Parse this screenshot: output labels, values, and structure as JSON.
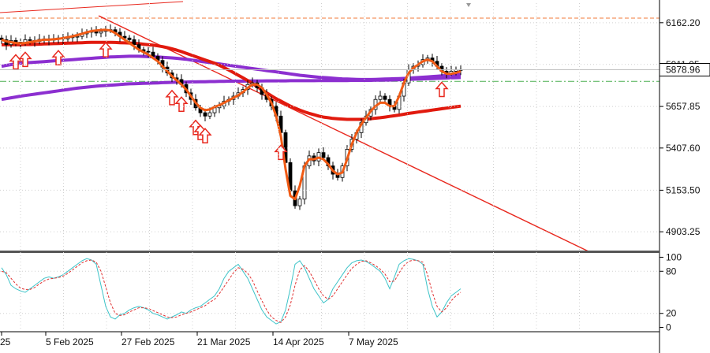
{
  "chart_data": [
    {
      "type": "candlestick",
      "title": "",
      "price_axis": {
        "labels": [
          "6162.20",
          "5911.05",
          "5657.85",
          "5407.60",
          "5153.50",
          "4903.25"
        ],
        "values": [
          6162.2,
          5911.05,
          5657.85,
          5407.6,
          5153.5,
          4903.25
        ],
        "range": [
          4790,
          6280
        ]
      },
      "current_price": {
        "label": "5878.96",
        "value": 5878.96
      },
      "levels": [
        {
          "name": "dashed-orange-level",
          "value": 6190,
          "color": "#f07a3a"
        },
        {
          "name": "dashdot-green-level",
          "value": 5809,
          "color": "#4caf50"
        }
      ],
      "x_axis": {
        "labels": [
          "25",
          "5 Feb 2025",
          "27 Feb 2025",
          "21 Mar 2025",
          "14 Apr 2025",
          "7 May 2025"
        ],
        "label_bars": [
          0,
          15,
          31,
          47,
          63,
          79
        ]
      },
      "bar_count": 98,
      "close": [
        6060,
        6030,
        6055,
        6045,
        6040,
        6060,
        6055,
        6050,
        6062,
        6065,
        6058,
        6062,
        6070,
        6065,
        6072,
        6078,
        6080,
        6095,
        6105,
        6110,
        6100,
        6110,
        6118,
        6120,
        6105,
        6080,
        6070,
        6060,
        6030,
        6000,
        5990,
        5985,
        5960,
        5935,
        5895,
        5860,
        5830,
        5820,
        5790,
        5740,
        5700,
        5650,
        5620,
        5600,
        5620,
        5650,
        5660,
        5690,
        5700,
        5720,
        5740,
        5760,
        5790,
        5800,
        5770,
        5730,
        5700,
        5660,
        5600,
        5500,
        5320,
        5150,
        5060,
        5100,
        5300,
        5360,
        5330,
        5380,
        5350,
        5300,
        5250,
        5230,
        5300,
        5400,
        5460,
        5500,
        5560,
        5600,
        5640,
        5700,
        5720,
        5700,
        5660,
        5640,
        5720,
        5800,
        5880,
        5900,
        5910,
        5940,
        5950,
        5930,
        5900,
        5870,
        5860,
        5870,
        5880,
        5878.96
      ],
      "ma_fast": [
        6060,
        6050,
        6045,
        6040,
        6038,
        6040,
        6045,
        6050,
        6055,
        6060,
        6060,
        6062,
        6065,
        6070,
        6075,
        6080,
        6088,
        6096,
        6105,
        6112,
        6115,
        6118,
        6120,
        6115,
        6100,
        6080,
        6060,
        6040,
        6020,
        6000,
        5985,
        5970,
        5950,
        5930,
        5900,
        5870,
        5840,
        5815,
        5790,
        5760,
        5720,
        5680,
        5650,
        5635,
        5640,
        5655,
        5665,
        5680,
        5695,
        5710,
        5725,
        5745,
        5770,
        5790,
        5790,
        5770,
        5730,
        5680,
        5600,
        5480,
        5280,
        5120,
        5100,
        5180,
        5300,
        5340,
        5340,
        5350,
        5340,
        5310,
        5270,
        5250,
        5260,
        5340,
        5430,
        5500,
        5550,
        5590,
        5630,
        5660,
        5680,
        5680,
        5660,
        5660,
        5720,
        5800,
        5860,
        5890,
        5910,
        5930,
        5940,
        5930,
        5900,
        5870,
        5855,
        5855,
        5860,
        5870
      ],
      "ma_mid": [
        6030,
        6030,
        6030,
        6030,
        6030,
        6031,
        6031,
        6032,
        6033,
        6034,
        6035,
        6036,
        6037,
        6038,
        6039,
        6040,
        6041,
        6042,
        6043,
        6044,
        6044,
        6044,
        6044,
        6044,
        6043,
        6042,
        6041,
        6040,
        6038,
        6036,
        6033,
        6030,
        6027,
        6023,
        6018,
        6012,
        6005,
        5997,
        5988,
        5978,
        5968,
        5958,
        5948,
        5938,
        5928,
        5918,
        5906,
        5892,
        5877,
        5862,
        5846,
        5830,
        5814,
        5796,
        5777,
        5758,
        5740,
        5722,
        5705,
        5690,
        5675,
        5660,
        5648,
        5636,
        5625,
        5616,
        5608,
        5600,
        5594,
        5590,
        5586,
        5584,
        5582,
        5580,
        5580,
        5580,
        5580,
        5582,
        5584,
        5587,
        5590,
        5594,
        5598,
        5602,
        5606,
        5611,
        5616,
        5620,
        5624,
        5628,
        5632,
        5636,
        5640,
        5644,
        5648,
        5652,
        5656,
        5660
      ],
      "ma_slow": [
        5900,
        5905,
        5910,
        5915,
        5918,
        5920,
        5922,
        5924,
        5926,
        5928,
        5930,
        5932,
        5934,
        5936,
        5938,
        5940,
        5942,
        5944,
        5946,
        5948,
        5950,
        5952,
        5954,
        5956,
        5957,
        5958,
        5959,
        5960,
        5960,
        5960,
        5959,
        5958,
        5957,
        5956,
        5954,
        5952,
        5950,
        5948,
        5945,
        5942,
        5938,
        5934,
        5930,
        5926,
        5922,
        5918,
        5914,
        5910,
        5906,
        5902,
        5898,
        5894,
        5890,
        5886,
        5882,
        5878,
        5874,
        5870,
        5866,
        5862,
        5858,
        5854,
        5850,
        5846,
        5843,
        5840,
        5837,
        5834,
        5832,
        5830,
        5828,
        5826,
        5824,
        5823,
        5822,
        5821,
        5820,
        5820,
        5820,
        5821,
        5822,
        5823,
        5824,
        5825,
        5826,
        5827,
        5828,
        5830,
        5832,
        5834,
        5836,
        5838,
        5840,
        5842,
        5844,
        5846,
        5848,
        5850
      ],
      "ma_long": [
        5700,
        5705,
        5710,
        5715,
        5720,
        5724,
        5728,
        5732,
        5736,
        5740,
        5744,
        5748,
        5752,
        5756,
        5760,
        5764,
        5768,
        5771,
        5774,
        5777,
        5780,
        5782,
        5784,
        5786,
        5788,
        5790,
        5792,
        5794,
        5795,
        5796,
        5797,
        5798,
        5799,
        5800,
        5801,
        5802,
        5803,
        5804,
        5805,
        5805,
        5806,
        5806,
        5807,
        5807,
        5808,
        5808,
        5809,
        5809,
        5810,
        5810,
        5810,
        5810,
        5811,
        5811,
        5811,
        5811,
        5812,
        5812,
        5812,
        5812,
        5812,
        5813,
        5813,
        5813,
        5813,
        5813,
        5813,
        5814,
        5814,
        5814,
        5814,
        5814,
        5814,
        5814,
        5815,
        5815,
        5815,
        5815,
        5815,
        5816,
        5816,
        5817,
        5817,
        5818,
        5819,
        5820,
        5821,
        5822,
        5823,
        5824,
        5825,
        5826,
        5827,
        5828,
        5829,
        5830,
        5831,
        5832
      ],
      "arrows_up": [
        3,
        5,
        12,
        22,
        36,
        38,
        41,
        42,
        43,
        59,
        98
      ]
    },
    {
      "type": "line",
      "title": "",
      "y_axis": {
        "labels": [
          "100",
          "80",
          "20",
          "0"
        ],
        "values": [
          100,
          80,
          20,
          0
        ],
        "range": [
          -5,
          105
        ]
      },
      "series": [
        {
          "color": "#3cc3c8",
          "dash": false,
          "values": [
            85,
            75,
            60,
            55,
            52,
            50,
            55,
            60,
            65,
            70,
            72,
            70,
            72,
            75,
            80,
            85,
            90,
            95,
            98,
            96,
            90,
            60,
            30,
            15,
            12,
            18,
            20,
            25,
            28,
            30,
            28,
            25,
            20,
            18,
            15,
            12,
            15,
            18,
            22,
            20,
            25,
            28,
            30,
            35,
            40,
            45,
            55,
            70,
            80,
            85,
            90,
            80,
            70,
            55,
            40,
            25,
            15,
            10,
            5,
            8,
            25,
            55,
            90,
            95,
            85,
            70,
            55,
            45,
            35,
            40,
            55,
            65,
            75,
            85,
            92,
            95,
            96,
            94,
            90,
            85,
            80,
            70,
            55,
            72,
            90,
            95,
            98,
            97,
            95,
            90,
            55,
            30,
            15,
            22,
            35,
            45,
            50,
            55
          ]
        },
        {
          "color": "#e03030",
          "dash": true,
          "values": [
            80,
            78,
            70,
            62,
            56,
            54,
            54,
            57,
            62,
            66,
            69,
            70,
            71,
            73,
            77,
            82,
            87,
            92,
            95,
            96,
            93,
            80,
            58,
            35,
            20,
            17,
            18,
            22,
            25,
            28,
            28,
            27,
            24,
            21,
            18,
            15,
            14,
            15,
            18,
            20,
            22,
            25,
            28,
            31,
            36,
            40,
            48,
            58,
            68,
            78,
            85,
            83,
            77,
            67,
            52,
            38,
            25,
            15,
            10,
            7,
            15,
            32,
            60,
            82,
            88,
            80,
            68,
            55,
            45,
            40,
            45,
            55,
            65,
            75,
            84,
            90,
            94,
            95,
            92,
            88,
            83,
            76,
            65,
            66,
            78,
            88,
            94,
            96,
            95,
            93,
            75,
            50,
            30,
            22,
            28,
            38,
            45,
            50
          ]
        }
      ]
    }
  ]
}
